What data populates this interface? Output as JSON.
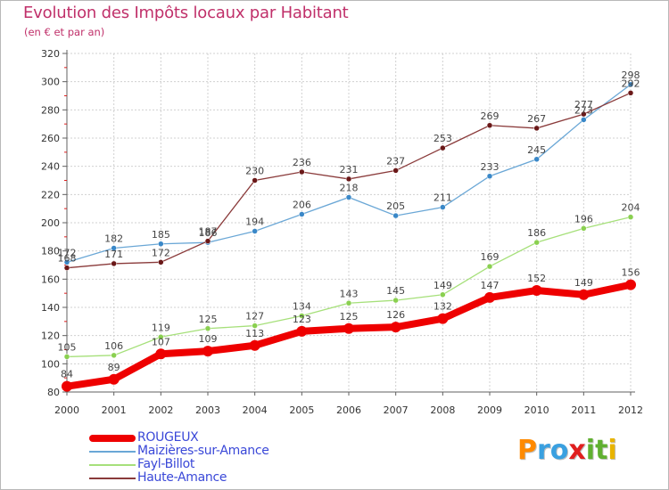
{
  "title": "Evolution des Impôts locaux par Habitant",
  "subtitle": "(en € et par an)",
  "brand": {
    "text": "Proxiti",
    "letters": [
      "P",
      "r",
      "o",
      "x",
      "i",
      "t",
      "i"
    ],
    "colors": [
      "#ff8a00",
      "#3aa0e0",
      "#3aa0e0",
      "#e01f1f",
      "#60b030",
      "#60b030",
      "#e8b400"
    ]
  },
  "colors": {
    "title": "#c0306a",
    "grid": "#d0d0d0",
    "axis": "#606060",
    "tick_red": "#e01f1f",
    "legend_text": "#3a48d8"
  },
  "chart_data": {
    "type": "line",
    "x": [
      2000,
      2001,
      2002,
      2003,
      2004,
      2005,
      2006,
      2007,
      2008,
      2009,
      2010,
      2011,
      2012
    ],
    "x_tick_labels": [
      "2000",
      "2001",
      "2002",
      "2003",
      "2004",
      "2005",
      "2006",
      "2007",
      "2008",
      "2009",
      "2010",
      "2011",
      "2012"
    ],
    "ylim": [
      80,
      320
    ],
    "y_ticks": [
      80,
      100,
      120,
      140,
      160,
      180,
      200,
      220,
      240,
      260,
      280,
      300,
      320
    ],
    "grid": true,
    "legend_position": "bottom-left",
    "series": [
      {
        "name": "ROUGEUX",
        "color": "#ee0000",
        "marker": "#ee0000",
        "style": "thick",
        "values": [
          84,
          89,
          107,
          109,
          113,
          123,
          125,
          126,
          132,
          147,
          152,
          149,
          156
        ]
      },
      {
        "name": "Maizières-sur-Amance",
        "color": "#6aa7d6",
        "marker": "#3a88c8",
        "style": "thin",
        "values": [
          172,
          182,
          185,
          186,
          194,
          206,
          218,
          205,
          211,
          233,
          245,
          273,
          298
        ]
      },
      {
        "name": "Fayl-Billot",
        "color": "#a6e07a",
        "marker": "#8ad050",
        "style": "thin",
        "values": [
          105,
          106,
          119,
          125,
          127,
          134,
          143,
          145,
          149,
          169,
          186,
          196,
          204
        ]
      },
      {
        "name": "Haute-Amance",
        "color": "#8a3a3a",
        "marker": "#6a1818",
        "style": "thin",
        "values": [
          168,
          171,
          172,
          187,
          230,
          236,
          231,
          237,
          253,
          269,
          267,
          277,
          292
        ]
      }
    ]
  }
}
